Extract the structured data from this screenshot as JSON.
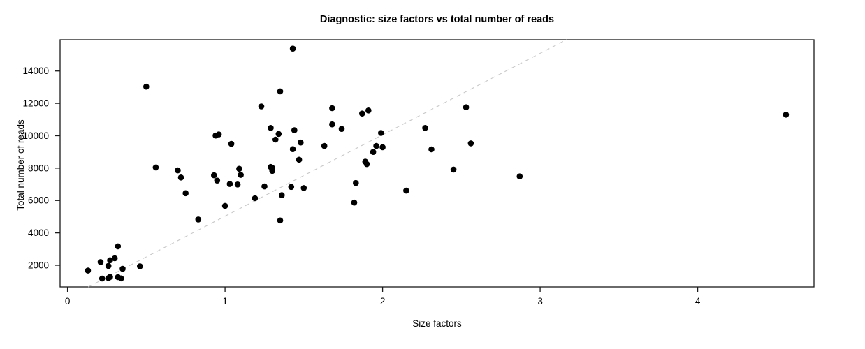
{
  "chart_data": {
    "type": "scatter",
    "title": "Diagnostic: size factors vs total number of reads",
    "xlabel": "Size factors",
    "ylabel": "Total number of reads",
    "xlim": [
      -0.047,
      4.738
    ],
    "ylim": [
      663,
      15928
    ],
    "x_ticks": [
      0,
      1,
      2,
      3,
      4
    ],
    "y_ticks": [
      2000,
      4000,
      6000,
      8000,
      10000,
      12000,
      14000
    ],
    "grid": false,
    "legend": false,
    "point_color": "#000000",
    "reference_line": {
      "slope": 5030,
      "intercept": 0,
      "style": "dashed",
      "color": "#c8c8c8"
    },
    "points": [
      [
        0.5,
        13030
      ],
      [
        1.23,
        11810
      ],
      [
        0.94,
        10010
      ],
      [
        0.96,
        10080
      ],
      [
        1.04,
        9500
      ],
      [
        0.56,
        8040
      ],
      [
        0.7,
        7860
      ],
      [
        0.72,
        7420
      ],
      [
        0.93,
        7560
      ],
      [
        0.95,
        7230
      ],
      [
        1.03,
        7020
      ],
      [
        1.08,
        6990
      ],
      [
        1.09,
        7960
      ],
      [
        1.1,
        7580
      ],
      [
        1.25,
        6870
      ],
      [
        0.75,
        6450
      ],
      [
        1.19,
        6140
      ],
      [
        1.0,
        5670
      ],
      [
        0.83,
        4830
      ],
      [
        0.32,
        3170
      ],
      [
        0.13,
        1670
      ],
      [
        0.21,
        2200
      ],
      [
        0.26,
        1960
      ],
      [
        0.27,
        2310
      ],
      [
        0.3,
        2430
      ],
      [
        0.35,
        1780
      ],
      [
        0.22,
        1180
      ],
      [
        0.26,
        1210
      ],
      [
        0.27,
        1280
      ],
      [
        0.32,
        1270
      ],
      [
        0.34,
        1190
      ],
      [
        0.46,
        1940
      ],
      [
        1.29,
        8070
      ],
      [
        1.3,
        8010
      ],
      [
        1.3,
        7830
      ],
      [
        1.43,
        15380
      ],
      [
        1.35,
        12740
      ],
      [
        1.68,
        11700
      ],
      [
        1.91,
        11560
      ],
      [
        1.87,
        11370
      ],
      [
        1.68,
        10700
      ],
      [
        1.74,
        10420
      ],
      [
        1.29,
        10480
      ],
      [
        1.34,
        10110
      ],
      [
        1.44,
        10340
      ],
      [
        1.32,
        9760
      ],
      [
        1.48,
        9580
      ],
      [
        1.43,
        9170
      ],
      [
        1.63,
        9370
      ],
      [
        1.99,
        10170
      ],
      [
        1.96,
        9370
      ],
      [
        2.0,
        9290
      ],
      [
        1.94,
        9000
      ],
      [
        1.47,
        8520
      ],
      [
        1.89,
        8400
      ],
      [
        1.9,
        8250
      ],
      [
        1.42,
        6840
      ],
      [
        1.5,
        6770
      ],
      [
        1.36,
        6330
      ],
      [
        1.83,
        7080
      ],
      [
        2.15,
        6610
      ],
      [
        1.82,
        5870
      ],
      [
        1.35,
        4770
      ],
      [
        2.27,
        10480
      ],
      [
        2.31,
        9160
      ],
      [
        2.45,
        7910
      ],
      [
        2.53,
        11760
      ],
      [
        2.56,
        9530
      ],
      [
        2.87,
        7490
      ],
      [
        4.56,
        11300
      ]
    ]
  }
}
